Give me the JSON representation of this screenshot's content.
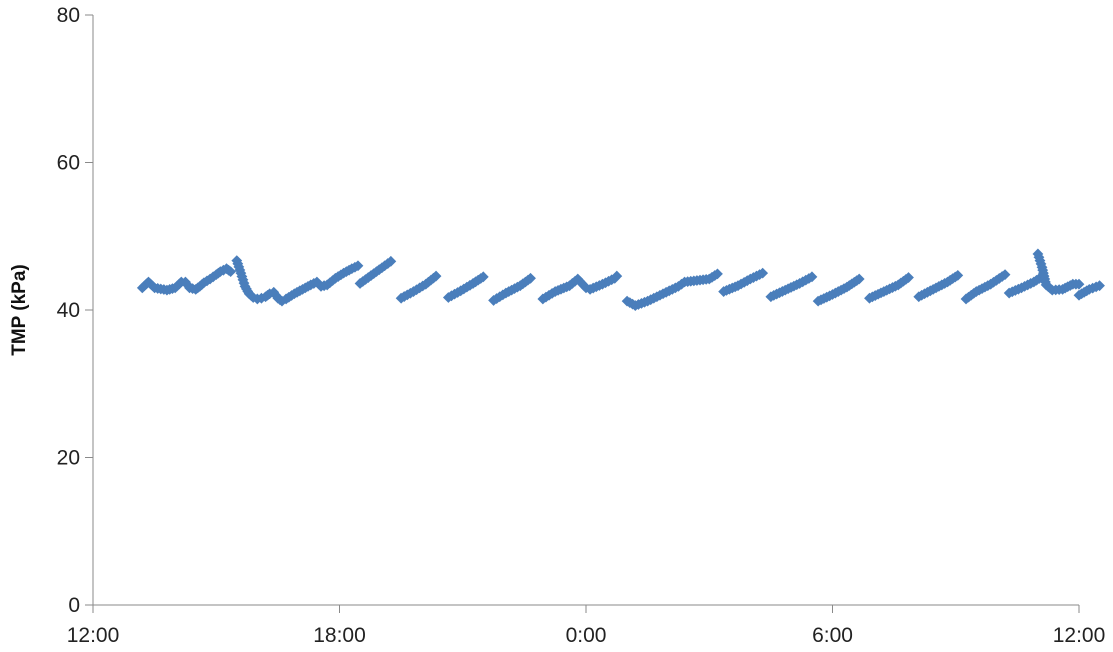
{
  "chart_data": {
    "type": "scatter",
    "title": "",
    "xlabel": "",
    "ylabel": "TMP (kPa)",
    "ylim": [
      0,
      80
    ],
    "yticks": [
      0,
      20,
      40,
      60,
      80
    ],
    "xlim_hours": [
      0,
      24
    ],
    "xtick_labels": [
      "12:00",
      "18:00",
      "0:00",
      "6:00",
      "12:00"
    ],
    "grid": false,
    "legend": "none",
    "marker": "diamond",
    "color": "#4a7ebb",
    "series": [
      {
        "segments": [
          [
            [
              1.2,
              43.0
            ],
            [
              1.35,
              43.8
            ],
            [
              1.5,
              43.0
            ],
            [
              1.8,
              42.7
            ],
            [
              2.0,
              43.0
            ],
            [
              2.15,
              43.8
            ],
            [
              2.25,
              43.8
            ],
            [
              2.35,
              43.0
            ],
            [
              2.5,
              42.8
            ],
            [
              2.6,
              43.2
            ],
            [
              2.7,
              43.7
            ],
            [
              2.85,
              44.2
            ],
            [
              3.0,
              44.8
            ],
            [
              3.1,
              45.2
            ],
            [
              3.25,
              45.6
            ],
            [
              3.35,
              45.2
            ]
          ],
          [
            [
              3.5,
              46.7
            ],
            [
              3.6,
              45.0
            ],
            [
              3.7,
              43.2
            ],
            [
              3.8,
              42.2
            ],
            [
              3.9,
              41.7
            ],
            [
              4.0,
              41.5
            ],
            [
              4.1,
              41.6
            ],
            [
              4.2,
              41.8
            ],
            [
              4.3,
              42.2
            ],
            [
              4.4,
              42.4
            ],
            [
              4.5,
              41.6
            ],
            [
              4.6,
              41.2
            ],
            [
              4.7,
              41.5
            ],
            [
              4.9,
              42.2
            ],
            [
              5.1,
              42.8
            ],
            [
              5.3,
              43.4
            ],
            [
              5.45,
              43.8
            ],
            [
              5.55,
              43.2
            ],
            [
              5.7,
              43.4
            ],
            [
              5.9,
              44.3
            ],
            [
              6.1,
              45.0
            ],
            [
              6.3,
              45.6
            ],
            [
              6.45,
              46.0
            ]
          ],
          [
            [
              6.5,
              43.6
            ],
            [
              6.7,
              44.4
            ],
            [
              6.9,
              45.2
            ],
            [
              7.1,
              46.0
            ],
            [
              7.25,
              46.6
            ]
          ],
          [
            [
              7.5,
              41.6
            ],
            [
              7.8,
              42.5
            ],
            [
              8.1,
              43.5
            ],
            [
              8.35,
              44.6
            ]
          ],
          [
            [
              8.65,
              41.7
            ],
            [
              8.95,
              42.6
            ],
            [
              9.25,
              43.6
            ],
            [
              9.5,
              44.5
            ]
          ],
          [
            [
              9.75,
              41.3
            ],
            [
              10.05,
              42.3
            ],
            [
              10.4,
              43.3
            ],
            [
              10.65,
              44.3
            ]
          ],
          [
            [
              10.95,
              41.5
            ],
            [
              11.25,
              42.5
            ],
            [
              11.6,
              43.3
            ],
            [
              11.8,
              44.2
            ],
            [
              12.0,
              43.0
            ],
            [
              12.1,
              42.8
            ],
            [
              12.4,
              43.5
            ],
            [
              12.7,
              44.3
            ],
            [
              12.75,
              44.6
            ]
          ],
          [
            [
              13.0,
              41.2
            ],
            [
              13.2,
              40.6
            ],
            [
              13.5,
              41.2
            ],
            [
              13.8,
              42.0
            ],
            [
              14.1,
              42.8
            ],
            [
              14.25,
              43.2
            ],
            [
              14.4,
              43.8
            ],
            [
              14.7,
              44.0
            ],
            [
              15.0,
              44.2
            ],
            [
              15.2,
              44.9
            ]
          ],
          [
            [
              15.35,
              42.5
            ],
            [
              15.7,
              43.3
            ],
            [
              16.0,
              44.2
            ],
            [
              16.3,
              45.0
            ]
          ],
          [
            [
              16.5,
              41.8
            ],
            [
              16.85,
              42.7
            ],
            [
              17.2,
              43.6
            ],
            [
              17.5,
              44.5
            ]
          ],
          [
            [
              17.65,
              41.2
            ],
            [
              18.0,
              42.1
            ],
            [
              18.35,
              43.1
            ],
            [
              18.65,
              44.2
            ]
          ],
          [
            [
              18.9,
              41.6
            ],
            [
              19.25,
              42.5
            ],
            [
              19.6,
              43.4
            ],
            [
              19.85,
              44.4
            ]
          ],
          [
            [
              20.1,
              41.8
            ],
            [
              20.45,
              42.8
            ],
            [
              20.8,
              43.8
            ],
            [
              21.05,
              44.7
            ]
          ],
          [
            [
              21.25,
              41.5
            ],
            [
              21.5,
              42.5
            ],
            [
              21.85,
              43.5
            ],
            [
              22.2,
              44.8
            ]
          ],
          [
            [
              22.3,
              42.3
            ],
            [
              22.6,
              43.0
            ],
            [
              22.9,
              43.8
            ],
            [
              23.1,
              44.5
            ]
          ],
          [
            [
              23.0,
              47.6
            ],
            [
              23.1,
              45.8
            ],
            [
              23.2,
              43.4
            ],
            [
              23.35,
              42.7
            ],
            [
              23.6,
              42.8
            ],
            [
              23.85,
              43.5
            ],
            [
              24.0,
              43.5
            ]
          ],
          [
            [
              24.0,
              42.0
            ],
            [
              24.25,
              42.8
            ],
            [
              24.5,
              43.3
            ]
          ]
        ]
      }
    ]
  }
}
